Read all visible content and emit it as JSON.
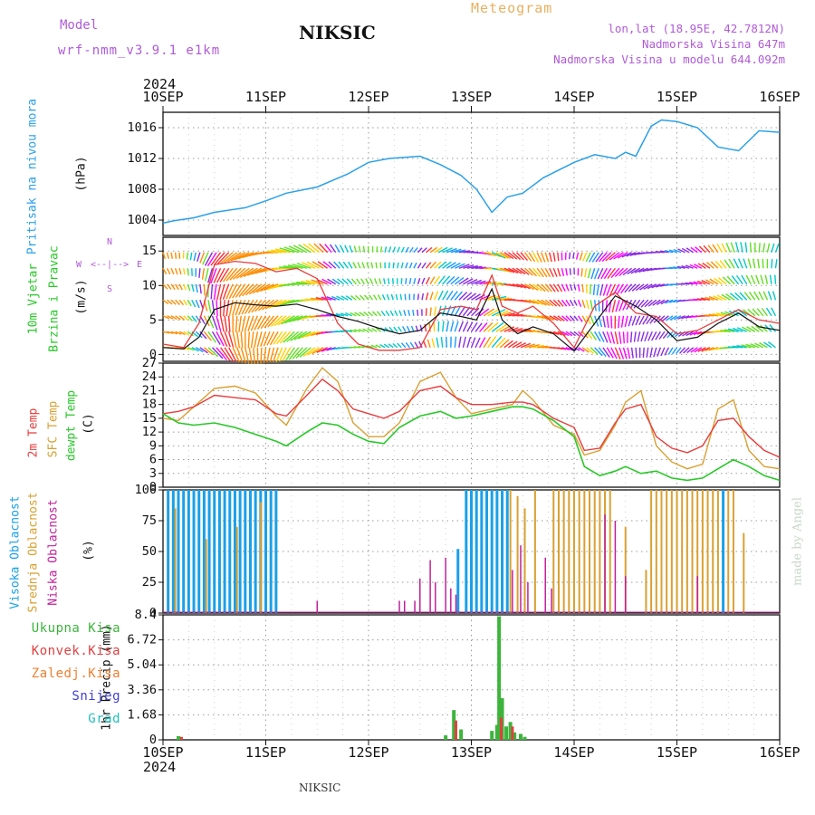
{
  "header": {
    "model_label": "Model",
    "model_name": "wrf-nmm_v3.9.1 e1km",
    "station": "NIKSIC",
    "meteogram_label": "Meteogram",
    "coords": "lon,lat (18.95E, 42.7812N)",
    "elevation": "Nadmorska Visina 647m",
    "model_elevation": "Nadmorska Visina u modelu 644.092m",
    "year": "2024",
    "footer_station": "NIKSIC",
    "credit": "made by Angel"
  },
  "colors": {
    "pressure": "#2aa0e8",
    "t2m": "#e83c3c",
    "sfc": "#d9a032",
    "dewpt": "#28c828",
    "high_cloud": "#1aa0e8",
    "mid_cloud": "#d9a032",
    "low_cloud": "#c0209a",
    "precip_total": "#3cb43c",
    "precip_conv": "#e04040",
    "precip_frozen": "#f08030",
    "snow": "#4040d0",
    "hail": "#20c0c0",
    "model_text": "#b05ad8",
    "meteogram_text": "#e8b060"
  },
  "chart_data": [
    {
      "type": "line",
      "name": "pressure",
      "ylabel_left": "Pritisak na nivou mora",
      "ylabel_unit": "(hPa)",
      "ylim": [
        1002,
        1018
      ],
      "yticks": [
        1004,
        1008,
        1012,
        1016
      ],
      "grid": true,
      "x_categories": [
        "10SEP",
        "11SEP",
        "12SEP",
        "13SEP",
        "14SEP",
        "15SEP",
        "16SEP"
      ],
      "series": [
        {
          "key": "pressure",
          "x": [
            0,
            0.1,
            0.3,
            0.5,
            0.8,
            1.0,
            1.2,
            1.5,
            1.8,
            2.0,
            2.2,
            2.5,
            2.7,
            2.9,
            3.05,
            3.2,
            3.35,
            3.5,
            3.7,
            4.0,
            4.2,
            4.4,
            4.5,
            4.6,
            4.75,
            4.85,
            5.0,
            5.2,
            5.4,
            5.6,
            5.8,
            6.0
          ],
          "y": [
            1003.6,
            1003.9,
            1004.3,
            1005.0,
            1005.6,
            1006.5,
            1007.5,
            1008.3,
            1010.0,
            1011.5,
            1012.0,
            1012.3,
            1011.2,
            1009.8,
            1008.0,
            1005.0,
            1007.0,
            1007.5,
            1009.5,
            1011.5,
            1012.5,
            1012.0,
            1012.8,
            1012.3,
            1016.2,
            1017.0,
            1016.8,
            1016.0,
            1013.5,
            1013.0,
            1015.6,
            1015.4
          ]
        }
      ]
    },
    {
      "type": "line",
      "name": "wind",
      "ylabel_left_1": "10m Vjetar",
      "ylabel_left_2": "Brzina i Pravac",
      "ylabel_unit": "(m/s)",
      "compass_n": "N",
      "compass_s": "S",
      "compass_w": "W",
      "compass_e": "E",
      "ylim": [
        -1,
        17
      ],
      "yticks": [
        0,
        5,
        10,
        15
      ],
      "grid": true,
      "series": [
        {
          "key": "speed",
          "x": [
            0,
            0.2,
            0.35,
            0.5,
            0.7,
            0.9,
            1.1,
            1.3,
            1.5,
            1.7,
            1.9,
            2.1,
            2.3,
            2.5,
            2.7,
            2.9,
            3.05,
            3.2,
            3.3,
            3.45,
            3.6,
            3.8,
            4.0,
            4.2,
            4.4,
            4.6,
            4.8,
            5.0,
            5.2,
            5.4,
            5.6,
            5.8,
            6.0
          ],
          "y": [
            1.0,
            0.8,
            2.5,
            6.5,
            7.5,
            7.2,
            7.0,
            7.3,
            6.5,
            5.5,
            4.8,
            3.8,
            3.0,
            3.5,
            6.0,
            5.5,
            5.0,
            9.5,
            5.0,
            3.0,
            4.0,
            3.0,
            0.5,
            4.5,
            8.5,
            7.0,
            5.0,
            2.0,
            2.5,
            4.5,
            6.0,
            4.0,
            3.5
          ]
        },
        {
          "key": "gust",
          "x": [
            0,
            0.2,
            0.35,
            0.5,
            0.7,
            0.9,
            1.1,
            1.3,
            1.5,
            1.7,
            1.9,
            2.1,
            2.3,
            2.5,
            2.7,
            2.9,
            3.05,
            3.2,
            3.3,
            3.45,
            3.6,
            3.8,
            4.0,
            4.2,
            4.4,
            4.6,
            4.8,
            5.0,
            5.2,
            5.4,
            5.6,
            5.8,
            6.0
          ],
          "y": [
            1.5,
            1.0,
            4.5,
            13.0,
            13.5,
            13.2,
            12.0,
            12.5,
            11.0,
            4.5,
            1.5,
            0.6,
            0.6,
            1.0,
            6.5,
            7.0,
            6.5,
            11.5,
            7.0,
            6.0,
            7.0,
            4.5,
            1.0,
            7.0,
            9.0,
            6.0,
            5.5,
            3.0,
            3.5,
            5.0,
            6.5,
            5.0,
            4.5
          ]
        }
      ]
    },
    {
      "type": "line",
      "name": "temperature",
      "ylabel_left_1": "2m Temp",
      "ylabel_left_2": "SFC Temp",
      "ylabel_left_3": "dewpt Temp",
      "ylabel_unit": "(C)",
      "ylim": [
        0,
        27
      ],
      "yticks": [
        0,
        3,
        6,
        9,
        12,
        15,
        18,
        21,
        24,
        27
      ],
      "grid": true,
      "series": [
        {
          "key": "t2m",
          "x": [
            0,
            0.15,
            0.3,
            0.5,
            0.7,
            0.9,
            1.1,
            1.2,
            1.4,
            1.55,
            1.7,
            1.85,
            2.0,
            2.15,
            2.3,
            2.5,
            2.7,
            2.85,
            3.0,
            3.2,
            3.4,
            3.5,
            3.6,
            3.8,
            4.0,
            4.1,
            4.25,
            4.4,
            4.5,
            4.65,
            4.8,
            4.95,
            5.1,
            5.25,
            5.4,
            5.55,
            5.7,
            5.85,
            6.0
          ],
          "y": [
            16,
            16.5,
            17.5,
            20.0,
            19.5,
            19.0,
            16.0,
            15.5,
            20.0,
            23.5,
            21.0,
            17.0,
            16.0,
            15.0,
            16.5,
            21.0,
            22.0,
            19.5,
            18.0,
            18.0,
            18.5,
            18.5,
            18.0,
            15.0,
            13.0,
            8.0,
            8.5,
            14.0,
            17.0,
            18.0,
            11.0,
            8.5,
            7.5,
            9.0,
            14.5,
            15.0,
            11.0,
            8.0,
            6.5
          ]
        },
        {
          "key": "sfc",
          "x": [
            0,
            0.15,
            0.3,
            0.5,
            0.7,
            0.9,
            1.1,
            1.2,
            1.4,
            1.55,
            1.7,
            1.85,
            2.0,
            2.15,
            2.3,
            2.5,
            2.7,
            2.85,
            3.0,
            3.2,
            3.4,
            3.5,
            3.6,
            3.8,
            4.0,
            4.1,
            4.25,
            4.4,
            4.5,
            4.65,
            4.8,
            4.95,
            5.1,
            5.25,
            5.4,
            5.55,
            5.7,
            5.85,
            6.0
          ],
          "y": [
            15,
            14.5,
            17.5,
            21.5,
            22.0,
            20.5,
            15.5,
            13.5,
            21.5,
            26.0,
            23.0,
            14.0,
            11.0,
            11.0,
            14.0,
            23.0,
            25.0,
            19.5,
            16.0,
            17.0,
            18.0,
            21.0,
            19.0,
            13.5,
            11.5,
            7.0,
            8.0,
            13.5,
            18.5,
            21.0,
            9.0,
            5.5,
            4.0,
            5.0,
            17.0,
            19.0,
            8.0,
            4.5,
            4.0
          ]
        },
        {
          "key": "dewpt",
          "x": [
            0,
            0.15,
            0.3,
            0.5,
            0.7,
            0.9,
            1.1,
            1.2,
            1.4,
            1.55,
            1.7,
            1.85,
            2.0,
            2.15,
            2.3,
            2.5,
            2.7,
            2.85,
            3.0,
            3.2,
            3.4,
            3.5,
            3.6,
            3.8,
            4.0,
            4.1,
            4.25,
            4.4,
            4.5,
            4.65,
            4.8,
            4.95,
            5.1,
            5.25,
            5.4,
            5.55,
            5.7,
            5.85,
            6.0
          ],
          "y": [
            16,
            14.0,
            13.5,
            14.0,
            13.0,
            11.5,
            10.0,
            9.0,
            12.0,
            14.0,
            13.5,
            11.5,
            10.0,
            9.5,
            13.0,
            15.5,
            16.5,
            15.0,
            15.5,
            16.5,
            17.5,
            17.5,
            17.0,
            14.5,
            11.0,
            4.5,
            2.5,
            3.5,
            4.5,
            3.0,
            3.5,
            2.0,
            1.5,
            2.0,
            4.0,
            6.0,
            4.5,
            2.5,
            1.5
          ]
        }
      ]
    },
    {
      "type": "bar",
      "name": "cloud",
      "ylabel_left_1": "Visoka Oblacnost",
      "ylabel_left_2": "Srednja Oblacnost",
      "ylabel_left_3": "Niska Oblacnost",
      "ylabel_unit": "(%)",
      "ylim": [
        0,
        100
      ],
      "yticks": [
        0,
        25,
        50,
        75,
        100
      ],
      "grid": true,
      "series": [
        {
          "key": "high",
          "x": [
            0.05,
            0.1,
            0.15,
            0.2,
            0.25,
            0.3,
            0.35,
            0.4,
            0.45,
            0.5,
            0.55,
            0.6,
            0.65,
            0.7,
            0.75,
            0.8,
            0.85,
            0.9,
            0.95,
            1.0,
            1.05,
            1.1,
            2.87,
            2.95,
            3.0,
            3.05,
            3.1,
            3.15,
            3.2,
            3.25,
            3.3,
            3.35,
            5.45
          ],
          "values": [
            100,
            100,
            100,
            100,
            100,
            100,
            100,
            100,
            100,
            100,
            100,
            100,
            100,
            100,
            100,
            100,
            100,
            100,
            100,
            100,
            100,
            100,
            52,
            100,
            100,
            100,
            100,
            100,
            100,
            100,
            100,
            100,
            100
          ]
        },
        {
          "key": "mid",
          "x": [
            0.12,
            0.42,
            0.72,
            0.95,
            3.38,
            3.45,
            3.52,
            3.62,
            3.8,
            3.85,
            3.9,
            3.95,
            4.0,
            4.05,
            4.1,
            4.15,
            4.2,
            4.25,
            4.3,
            4.35,
            4.5,
            4.7,
            4.75,
            4.8,
            4.85,
            4.9,
            4.95,
            5.0,
            5.05,
            5.1,
            5.15,
            5.2,
            5.25,
            5.3,
            5.35,
            5.4,
            5.5,
            5.55,
            5.65
          ],
          "values": [
            85,
            60,
            70,
            90,
            100,
            95,
            85,
            100,
            100,
            100,
            100,
            100,
            100,
            100,
            100,
            100,
            100,
            100,
            100,
            100,
            70,
            35,
            100,
            100,
            100,
            100,
            100,
            100,
            100,
            100,
            100,
            100,
            100,
            100,
            100,
            100,
            100,
            100,
            65
          ]
        },
        {
          "key": "low",
          "x": [
            1.5,
            2.3,
            2.35,
            2.45,
            2.5,
            2.6,
            2.65,
            2.75,
            2.8,
            2.85,
            3.4,
            3.48,
            3.55,
            3.72,
            3.78,
            4.3,
            4.4,
            4.5,
            5.2
          ],
          "values": [
            10,
            10,
            10,
            10,
            28,
            43,
            25,
            45,
            20,
            15,
            35,
            55,
            25,
            45,
            20,
            80,
            75,
            30,
            30
          ]
        }
      ]
    },
    {
      "type": "bar",
      "name": "precip",
      "legend": [
        "Ukupna Kisa",
        "Konvek.Kisa",
        "Zaledj.Kisa",
        "Snijeg",
        "Grad"
      ],
      "ylabel_unit": "1hr Precip (mm)",
      "ylim": [
        0,
        8.4
      ],
      "yticks": [
        0,
        1.68,
        3.36,
        5.04,
        6.72,
        8.4
      ],
      "ytick_labels": [
        "0",
        "1.68",
        "3.36",
        "5.04",
        "6.72",
        "8.4"
      ],
      "grid": true,
      "series": [
        {
          "key": "total",
          "x": [
            0.15,
            2.75,
            2.83,
            2.9,
            3.2,
            3.25,
            3.27,
            3.3,
            3.34,
            3.38,
            3.42,
            3.48,
            3.52
          ],
          "values": [
            0.25,
            0.3,
            2.0,
            0.7,
            0.6,
            1.0,
            8.3,
            2.8,
            0.9,
            1.2,
            0.5,
            0.4,
            0.2
          ]
        },
        {
          "key": "conv",
          "x": [
            0.18,
            2.85,
            3.29,
            3.4
          ],
          "values": [
            0.2,
            1.3,
            1.5,
            0.9
          ]
        }
      ]
    }
  ]
}
